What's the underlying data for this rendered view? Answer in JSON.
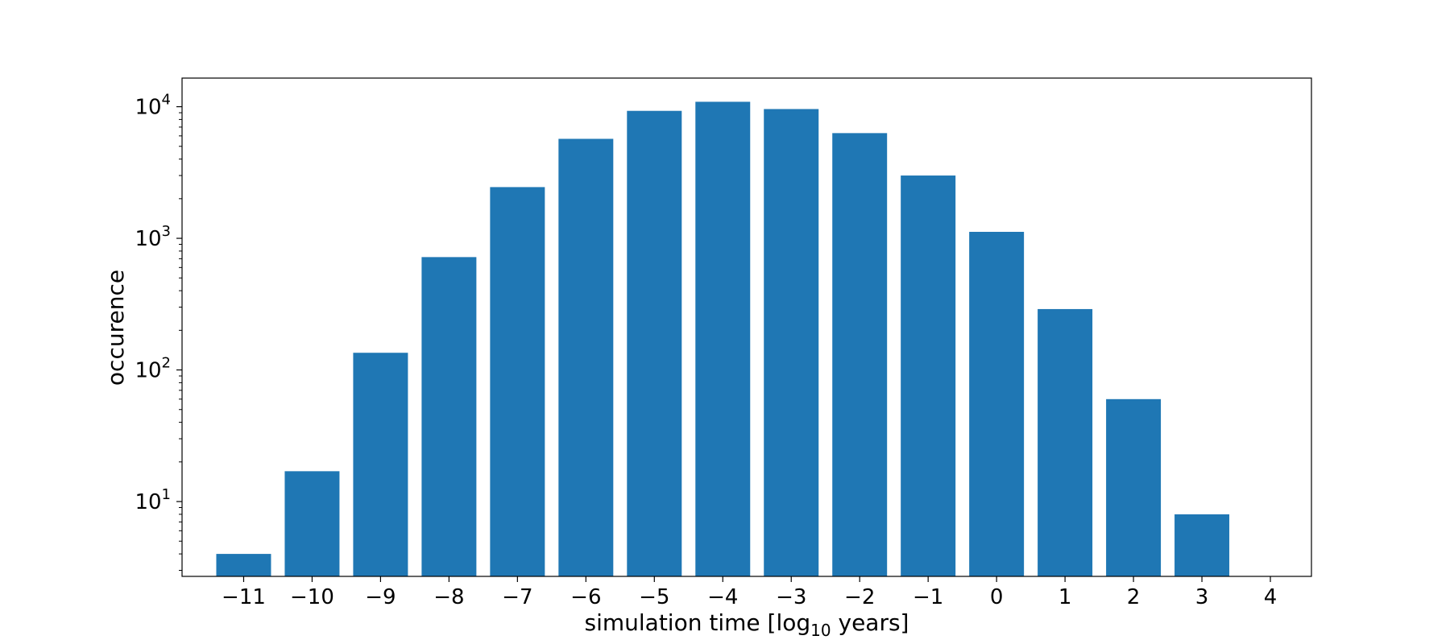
{
  "chart_data": {
    "type": "bar",
    "title": "",
    "xlabel": "simulation time [log10 years]",
    "xlabel_parts": {
      "before": "simulation time [log",
      "subscript": "10",
      "after": " years]"
    },
    "ylabel": "occurence",
    "yscale": "log",
    "ylim": [
      2.7,
      16500
    ],
    "x_ticks": [
      -11,
      -10,
      -9,
      -8,
      -7,
      -6,
      -5,
      -4,
      -3,
      -2,
      -1,
      0,
      1,
      2,
      3,
      4
    ],
    "x_tick_labels": [
      "−11",
      "−10",
      "−9",
      "−8",
      "−7",
      "−6",
      "−5",
      "−4",
      "−3",
      "−2",
      "−1",
      "0",
      "1",
      "2",
      "3",
      "4"
    ],
    "y_ticks": [
      {
        "value": 10,
        "base": "10",
        "exponent": "1"
      },
      {
        "value": 100,
        "base": "10",
        "exponent": "2"
      },
      {
        "value": 1000,
        "base": "10",
        "exponent": "3"
      },
      {
        "value": 10000,
        "base": "10",
        "exponent": "4"
      }
    ],
    "categories": [
      -11,
      -10,
      -9,
      -8,
      -7,
      -6,
      -5,
      -4,
      -3,
      -2,
      -1,
      0,
      1,
      2,
      3
    ],
    "values": [
      4,
      17,
      135,
      720,
      2450,
      5700,
      9300,
      10900,
      9600,
      6300,
      3000,
      1120,
      290,
      60,
      8
    ],
    "bar_color": "#1f77b4",
    "grid": false,
    "legend": "none"
  }
}
